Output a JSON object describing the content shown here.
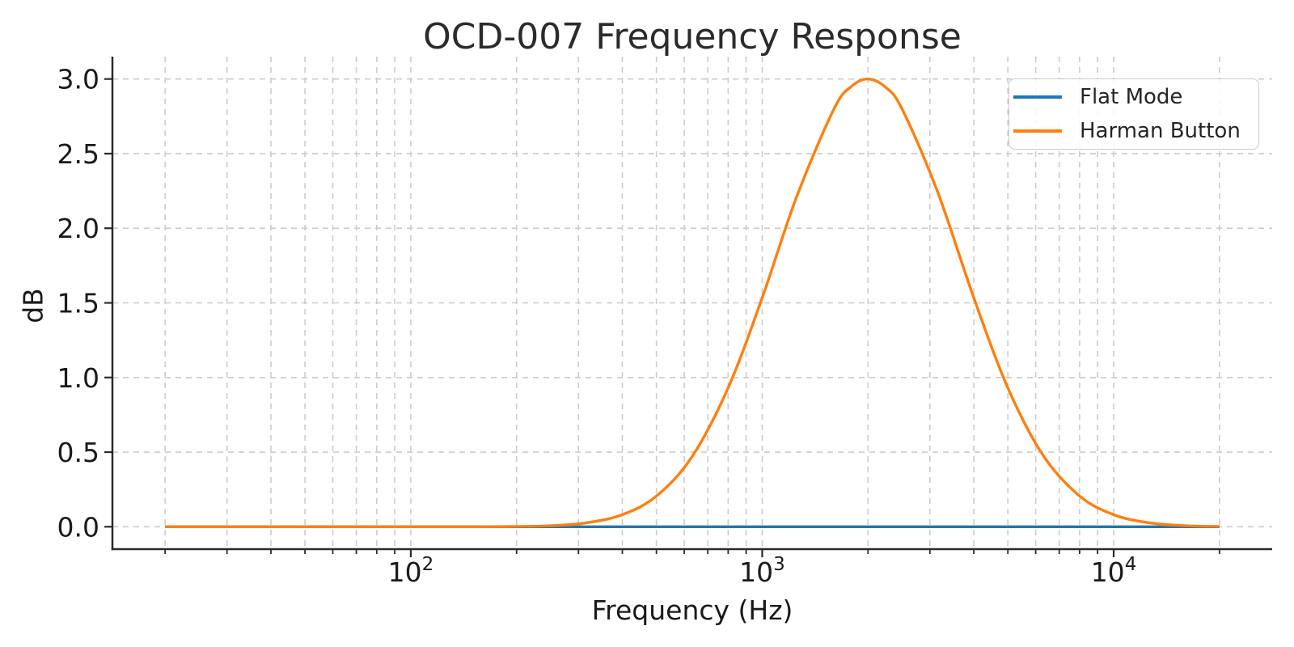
{
  "chart_data": {
    "type": "line",
    "title": "OCD-007 Frequency Response",
    "xlabel": "Frequency (Hz)",
    "ylabel": "dB",
    "x_scale": "log",
    "xlim": [
      14.16,
      28250
    ],
    "ylim": [
      -0.15,
      3.15
    ],
    "grid": {
      "on": true,
      "color": "#cccccc",
      "dash": [
        7,
        6
      ],
      "line_width": 1.6
    },
    "axis_style": {
      "spine_color": "#2b2b2b",
      "tick_color": "#2b2b2b",
      "text_color": "#1a1a1a"
    },
    "x_major_ticks": [
      {
        "value": 100,
        "label_base": "10",
        "label_exp": "2"
      },
      {
        "value": 1000,
        "label_base": "10",
        "label_exp": "3"
      },
      {
        "value": 10000,
        "label_base": "10",
        "label_exp": "4"
      }
    ],
    "x_minor_ticks": [
      20,
      30,
      40,
      50,
      60,
      70,
      80,
      90,
      200,
      300,
      400,
      500,
      600,
      700,
      800,
      900,
      2000,
      3000,
      4000,
      5000,
      6000,
      7000,
      8000,
      9000,
      20000
    ],
    "y_ticks": [
      {
        "value": 0.0,
        "label": "0.0"
      },
      {
        "value": 0.5,
        "label": "0.5"
      },
      {
        "value": 1.0,
        "label": "1.0"
      },
      {
        "value": 1.5,
        "label": "1.5"
      },
      {
        "value": 2.0,
        "label": "2.0"
      },
      {
        "value": 2.5,
        "label": "2.5"
      },
      {
        "value": 3.0,
        "label": "3.0"
      }
    ],
    "legend": {
      "position": "upper-right",
      "border_color": "#cccccc",
      "background": "rgba(255,255,255,0.85)"
    },
    "series": [
      {
        "name": "Flat Mode",
        "color": "#1f77b4",
        "line_width": 3.4,
        "points": [
          [
            20,
            0
          ],
          [
            100,
            0
          ],
          [
            1000,
            0
          ],
          [
            10000,
            0
          ],
          [
            20000,
            0
          ]
        ]
      },
      {
        "name": "Harman Button",
        "color": "#ff7f0e",
        "line_width": 3.4,
        "points": [
          [
            20,
            0
          ],
          [
            25,
            0
          ],
          [
            31.5,
            0
          ],
          [
            40,
            0
          ],
          [
            50,
            0
          ],
          [
            63,
            0
          ],
          [
            80,
            0
          ],
          [
            100,
            0
          ],
          [
            125,
            0
          ],
          [
            160,
            0
          ],
          [
            200,
            0.002
          ],
          [
            250,
            0.007
          ],
          [
            315,
            0.026
          ],
          [
            400,
            0.081
          ],
          [
            500,
            0.206
          ],
          [
            630,
            0.466
          ],
          [
            800,
            0.931
          ],
          [
            1000,
            1.534
          ],
          [
            1250,
            2.204
          ],
          [
            1600,
            2.799
          ],
          [
            1800,
            2.953
          ],
          [
            2000,
            3.0
          ],
          [
            2240,
            2.946
          ],
          [
            2500,
            2.799
          ],
          [
            3150,
            2.249
          ],
          [
            4000,
            1.534
          ],
          [
            5000,
            0.931
          ],
          [
            6300,
            0.478
          ],
          [
            8000,
            0.206
          ],
          [
            10000,
            0.081
          ],
          [
            12500,
            0.028
          ],
          [
            16000,
            0.007
          ],
          [
            20000,
            0.002
          ]
        ]
      }
    ]
  }
}
